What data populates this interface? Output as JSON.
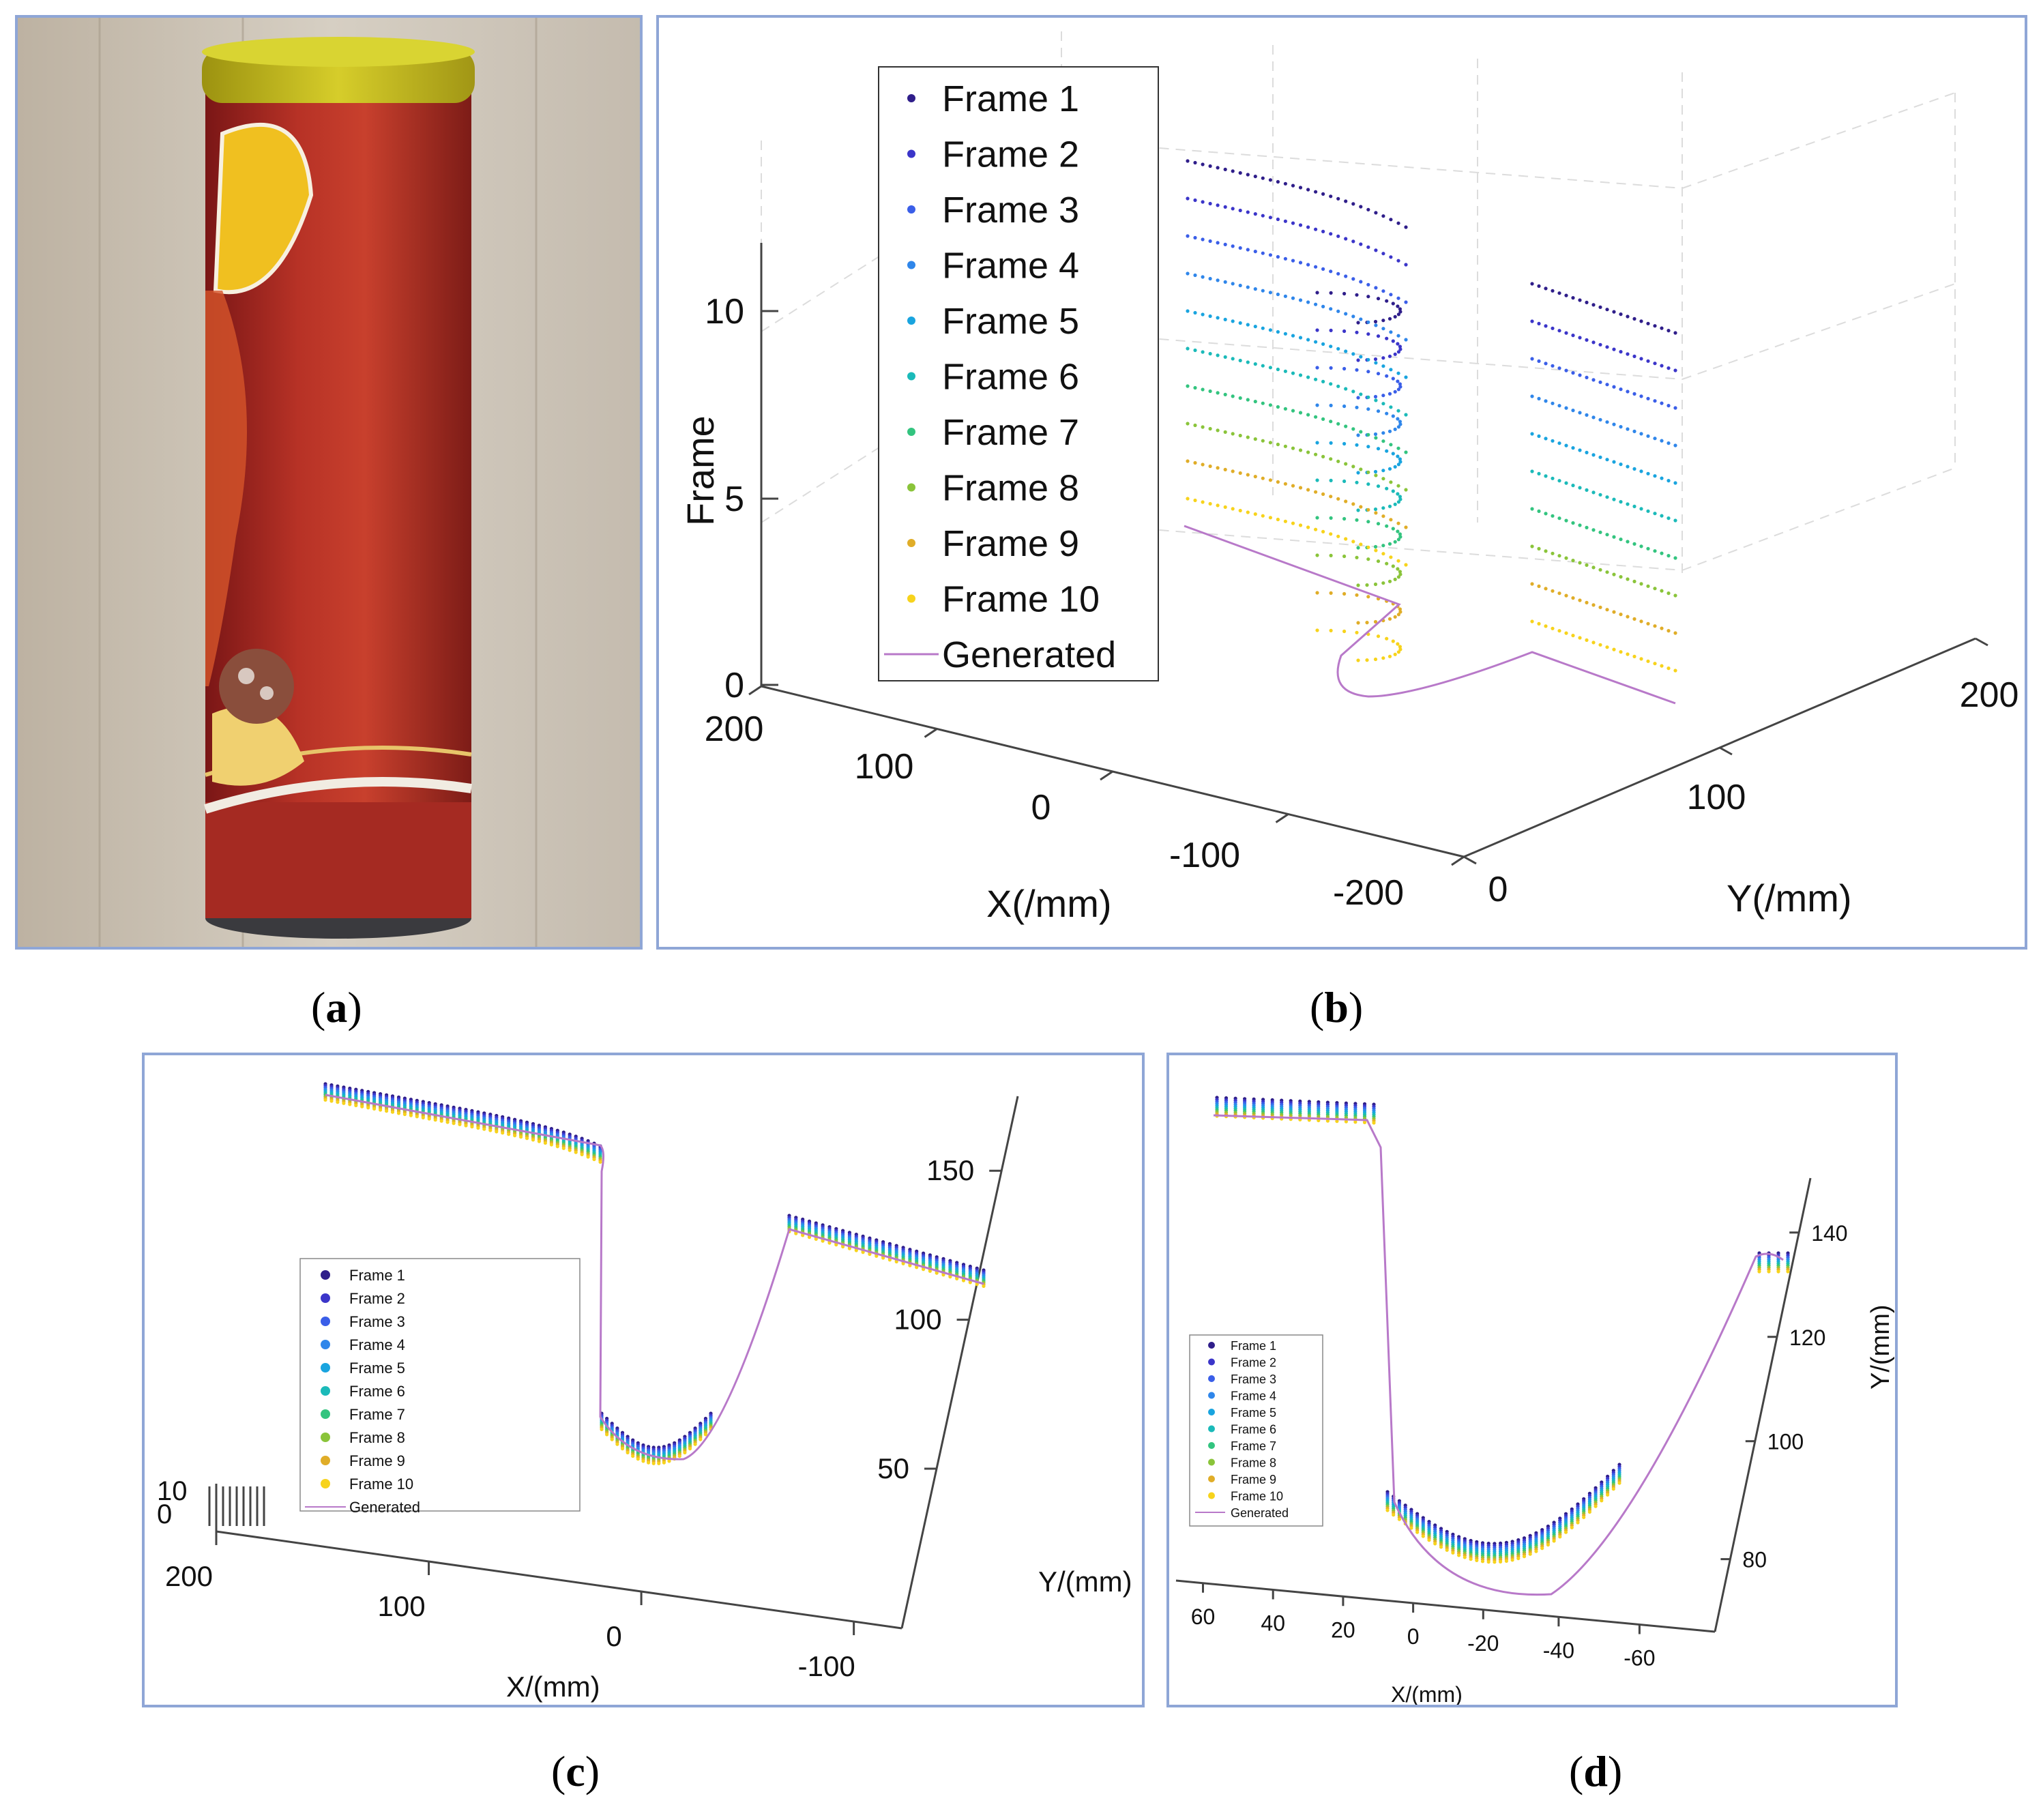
{
  "panel_labels": {
    "a": "a",
    "b": "b",
    "c": "c",
    "d": "d"
  },
  "legend_entries": [
    "Frame 1",
    "Frame 2",
    "Frame 3",
    "Frame 4",
    "Frame 5",
    "Frame 6",
    "Frame 7",
    "Frame 8",
    "Frame 9",
    "Frame 10",
    "Generated"
  ],
  "series_colors": [
    "#2f1e8a",
    "#3b35c9",
    "#3a5ee8",
    "#2f86ea",
    "#19a4df",
    "#1bbab9",
    "#33c47f",
    "#8ac43a",
    "#e0ad28",
    "#f7d31c"
  ],
  "generated_color": "#b879c9",
  "photo": {
    "description_icon": "chip-canister-photo"
  },
  "chart_data": [
    {
      "id": "b",
      "type": "scatter",
      "xlabel": "X(/mm)",
      "ylabel": "Y(/mm)",
      "zlabel": "Frame",
      "x_ticks": [
        "200",
        "100",
        "0",
        "-100",
        "-200"
      ],
      "y_ticks": [
        "0",
        "100",
        "200"
      ],
      "z_ticks": [
        "0",
        "5",
        "10"
      ],
      "legend": "top-left",
      "grid": true
    },
    {
      "id": "c",
      "type": "scatter",
      "xlabel": "X/(mm)",
      "ylabel": "Y/(mm)",
      "x_ticks": [
        "200",
        "100",
        "0",
        "-100"
      ],
      "y_ticks": [
        "50",
        "100",
        "150"
      ],
      "z_ticks": [
        "10",
        "0"
      ],
      "legend": "left",
      "grid": false
    },
    {
      "id": "d",
      "type": "scatter",
      "xlabel": "X/(mm)",
      "ylabel": "Y/(mm)",
      "x_ticks": [
        "60",
        "40",
        "20",
        "0",
        "-20",
        "-40",
        "-60"
      ],
      "y_ticks": [
        "80",
        "100",
        "120",
        "140"
      ],
      "legend": "left",
      "grid": false
    }
  ]
}
